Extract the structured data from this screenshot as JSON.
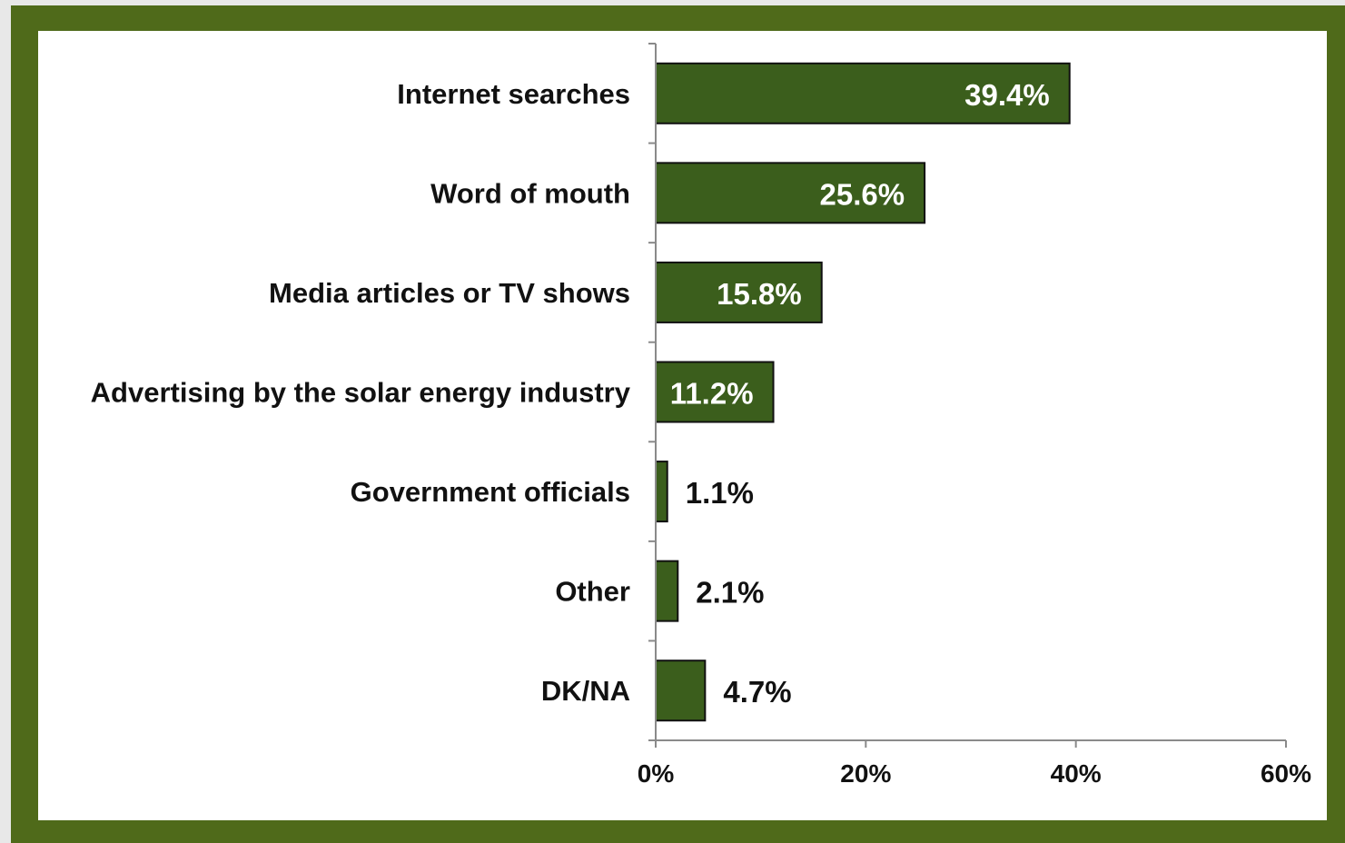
{
  "chart_data": {
    "type": "bar",
    "orientation": "horizontal",
    "categories": [
      "Internet searches",
      "Word of mouth",
      "Media articles or TV shows",
      "Advertising by the solar energy industry",
      "Government officials",
      "Other",
      "DK/NA"
    ],
    "values": [
      39.4,
      25.6,
      15.8,
      11.2,
      1.1,
      2.1,
      4.7
    ],
    "value_labels": [
      "39.4%",
      "25.6%",
      "15.8%",
      "11.2%",
      "1.1%",
      "2.1%",
      "4.7%"
    ],
    "xlim": [
      0,
      60
    ],
    "x_ticks": [
      0,
      20,
      40,
      60
    ],
    "x_tick_labels": [
      "0%",
      "20%",
      "40%",
      "60%"
    ],
    "grid": false,
    "bar_color": "#3b5e1c",
    "frame_color": "#4f6a1a"
  }
}
